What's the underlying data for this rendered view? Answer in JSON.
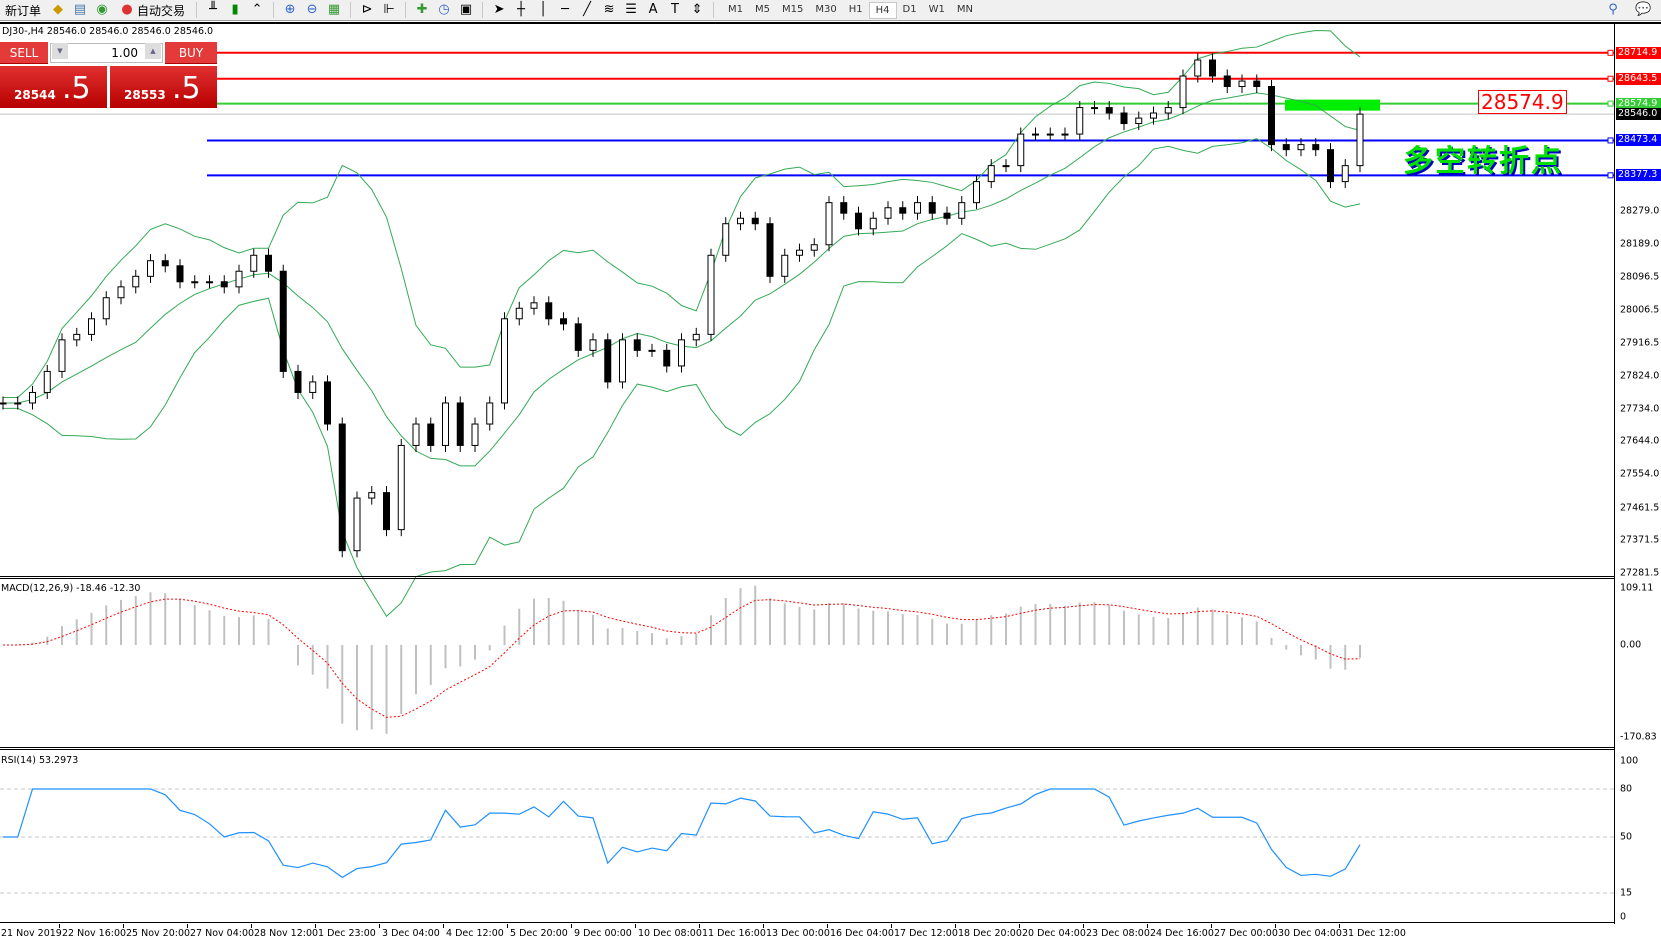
{
  "toolbar": {
    "new_order": "新订单",
    "auto_trading": "自动交易",
    "timeframes": [
      "M1",
      "M5",
      "M15",
      "M30",
      "H1",
      "H4",
      "D1",
      "W1",
      "MN"
    ],
    "active_timeframe": "H4"
  },
  "symbol_info": "DJ30-,H4  28546.0 28546.0 28546.0 28546.0",
  "trade_panel": {
    "sell_label": "SELL",
    "buy_label": "BUY",
    "lot": "1.00",
    "sell_price_small": "28544",
    "sell_price_large": ".5",
    "buy_price_small": "28553",
    "buy_price_large": ".5"
  },
  "price_axis": [
    "28279.0",
    "28189.0",
    "28096.5",
    "28006.5",
    "27916.5",
    "27824.0",
    "27734.0",
    "27644.0",
    "27554.0",
    "27461.5",
    "27371.5",
    "27281.5"
  ],
  "levels": [
    {
      "price": 28714.9,
      "label": "28714.9",
      "color": "#ff0000"
    },
    {
      "price": 28643.5,
      "label": "28643.5",
      "color": "#ff0000"
    },
    {
      "price": 28574.9,
      "label": "28574.9",
      "color": "#33cc33"
    },
    {
      "price": 28473.4,
      "label": "28473.4",
      "color": "#0000ff"
    },
    {
      "price": 28377.3,
      "label": "28377.3",
      "color": "#0000ff"
    }
  ],
  "bid": {
    "price": 28546.0,
    "label": "28546.0"
  },
  "pivot_label": "28574.9",
  "pivot_text": "多空转折点",
  "macd": {
    "label": "MACD(12,26,9) -18.46 -12.30",
    "axis": [
      "109.11",
      "0.00",
      "-170.83"
    ],
    "max": 109.11,
    "min": -170.83
  },
  "rsi": {
    "label": "RSI(14) 53.2973",
    "axis": [
      "100",
      "80",
      "50",
      "15",
      "0"
    ]
  },
  "time_axis": [
    "21 Nov 2019",
    "22 Nov 16:00",
    "25 Nov 20:00",
    "27 Nov 04:00",
    "28 Nov 12:00",
    "1 Dec 23:00",
    "3 Dec 04:00",
    "4 Dec 12:00",
    "5 Dec 20:00",
    "9 Dec 00:00",
    "10 Dec 08:00",
    "11 Dec 16:00",
    "13 Dec 00:00",
    "16 Dec 04:00",
    "17 Dec 12:00",
    "18 Dec 20:00",
    "20 Dec 04:00",
    "23 Dec 08:00",
    "24 Dec 16:00",
    "27 Dec 00:00",
    "30 Dec 04:00",
    "31 Dec 12:00"
  ],
  "colors": {
    "bands": "#33aa55",
    "macd_hist": "#c0c0c0",
    "macd_signal": "#ff0000",
    "rsi": "#1e90ff"
  },
  "closes": [
    27750,
    27750,
    27779,
    27837,
    27924,
    27939,
    27982,
    28040,
    28070,
    28099,
    28142,
    28128,
    28084,
    28084,
    28084,
    28070,
    28113,
    28157,
    28113,
    27837,
    27779,
    27808,
    27692,
    27343,
    27488,
    27503,
    27401,
    27633,
    27692,
    27633,
    27750,
    27633,
    27692,
    27750,
    27982,
    28011,
    28026,
    27982,
    27968,
    27895,
    27924,
    27808,
    27924,
    27895,
    27895,
    27852,
    27924,
    27939,
    28157,
    28244,
    28259,
    28244,
    28099,
    28157,
    28171,
    28186,
    28302,
    28273,
    28230,
    28259,
    28288,
    28273,
    28302,
    28273,
    28259,
    28302,
    28360,
    28404,
    28404,
    28491,
    28491,
    28491,
    28491,
    28564,
    28564,
    28549,
    28520,
    28535,
    28549,
    28564,
    28651,
    28695,
    28651,
    28622,
    28637,
    28622,
    28462,
    28448,
    28462,
    28448,
    28360,
    28404,
    28546
  ]
}
